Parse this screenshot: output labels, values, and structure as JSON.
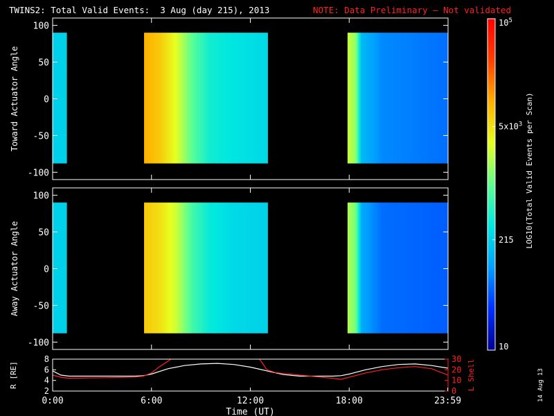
{
  "title": {
    "main": "TWINS2: Total Valid Events:  3 Aug (day 215), 2013",
    "note": "NOTE: Data Preliminary — Not validated"
  },
  "footer": {
    "date_stamp": "14 Aug 13"
  },
  "colorbar": {
    "label": "LOG10(Total Valid Events per Scan)",
    "ticks": [
      "10",
      "215",
      "5x10^3",
      "10^5"
    ],
    "tick_values": [
      10,
      215,
      5000,
      100000
    ],
    "range": [
      10,
      100000
    ],
    "colors": [
      "#000090",
      "#0030ff",
      "#00a0ff",
      "#00e8e0",
      "#60ff90",
      "#e8ff20",
      "#ffb000",
      "#ff4000",
      "#ff0000"
    ]
  },
  "chart_data": [
    {
      "type": "heatmap",
      "name": "toward",
      "ylabel": "Toward Actuator Angle",
      "ylim": [
        -110,
        110
      ],
      "xlim": [
        0,
        24
      ],
      "yticks": [
        "-100",
        "-50",
        "0",
        "50",
        "100"
      ],
      "ytick_values": [
        -100,
        -50,
        0,
        50,
        100
      ],
      "angle_range": [
        -88,
        90
      ],
      "segments": [
        {
          "start": 0.0,
          "end": 0.85,
          "profile": [
            [
              0.0,
              215
            ],
            [
              0.85,
              215
            ]
          ]
        },
        {
          "start": 5.55,
          "end": 13.05,
          "profile": [
            [
              5.55,
              10000
            ],
            [
              6.5,
              7000
            ],
            [
              7.5,
              3000
            ],
            [
              8.5,
              900
            ],
            [
              9.5,
              400
            ],
            [
              11.0,
              300
            ],
            [
              13.0,
              250
            ]
          ]
        },
        {
          "start": 17.9,
          "end": 24.0,
          "profile": [
            [
              17.9,
              2500
            ],
            [
              18.4,
              1500
            ],
            [
              18.75,
              150
            ],
            [
              20.0,
              80
            ],
            [
              24.0,
              60
            ]
          ]
        }
      ]
    },
    {
      "type": "heatmap",
      "name": "away",
      "ylabel": "Away Actuator Angle",
      "ylim": [
        -110,
        110
      ],
      "xlim": [
        0,
        24
      ],
      "yticks": [
        "-100",
        "-50",
        "0",
        "50",
        "100"
      ],
      "ytick_values": [
        -100,
        -50,
        0,
        50,
        100
      ],
      "angle_range": [
        -88,
        90
      ],
      "segments": [
        {
          "start": 0.0,
          "end": 0.85,
          "profile": [
            [
              0.0,
              215
            ],
            [
              0.85,
              215
            ]
          ]
        },
        {
          "start": 5.55,
          "end": 13.05,
          "profile": [
            [
              5.55,
              7000
            ],
            [
              6.5,
              5000
            ],
            [
              7.5,
              2500
            ],
            [
              8.5,
              700
            ],
            [
              9.5,
              350
            ],
            [
              11.0,
              250
            ],
            [
              13.0,
              220
            ]
          ]
        },
        {
          "start": 17.9,
          "end": 24.0,
          "profile": [
            [
              17.9,
              2000
            ],
            [
              18.4,
              1200
            ],
            [
              18.75,
              120
            ],
            [
              20.0,
              60
            ],
            [
              24.0,
              50
            ]
          ]
        }
      ]
    },
    {
      "type": "line",
      "name": "orbit",
      "xlabel": "Time (UT)",
      "ylabel_left": "R [RE]",
      "ylabel_right": "L Shell",
      "ylim_left": [
        2,
        8
      ],
      "ylim_right": [
        0,
        30
      ],
      "xlim": [
        0,
        24
      ],
      "xticks": [
        "0:00",
        "6:00",
        "12:00",
        "18:00",
        "23:59"
      ],
      "xtick_values": [
        0,
        6,
        12,
        18,
        23.98
      ],
      "yticks_left": [
        "2",
        "4",
        "6",
        "8"
      ],
      "yticks_right": [
        "0",
        "10",
        "20",
        "30"
      ],
      "series": [
        {
          "axis": "left",
          "color": "#ffffff",
          "x": [
            0,
            0.5,
            1,
            2,
            3,
            4,
            5,
            5.5,
            6,
            7,
            8,
            9,
            10,
            11,
            12,
            13,
            14,
            15,
            16,
            17,
            17.5,
            18,
            19,
            20,
            21,
            22,
            23,
            24
          ],
          "y": [
            5.8,
            5.0,
            4.8,
            4.8,
            4.8,
            4.8,
            4.8,
            4.9,
            5.2,
            6.2,
            6.8,
            7.1,
            7.2,
            7.0,
            6.5,
            5.8,
            5.1,
            4.8,
            4.8,
            4.8,
            4.9,
            5.2,
            6.0,
            6.6,
            7.0,
            7.1,
            6.8,
            6.3
          ]
        },
        {
          "axis": "right",
          "color": "#ff2020",
          "x": [
            0,
            0.5,
            1,
            2,
            3,
            4,
            5,
            5.5,
            6,
            6.5,
            7,
            7.25,
            12.5,
            12.75,
            13,
            13.5,
            14,
            15,
            16,
            17,
            17.5,
            18,
            19,
            20,
            21,
            22,
            23,
            24
          ],
          "y": [
            15,
            13,
            12,
            12.3,
            12.5,
            12.8,
            13.2,
            14,
            17,
            23,
            28,
            31,
            31,
            26,
            20,
            17.5,
            16.5,
            15,
            13.5,
            12,
            11,
            13,
            17,
            20,
            22,
            23,
            21,
            15
          ]
        }
      ]
    }
  ]
}
